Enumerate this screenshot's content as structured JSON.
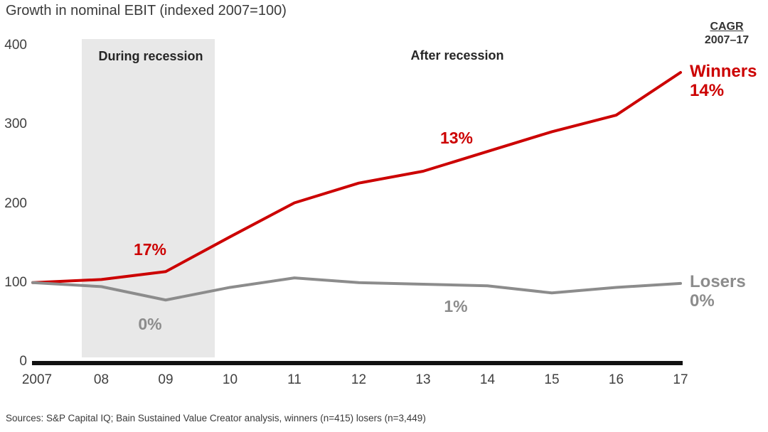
{
  "title": "Growth in nominal EBIT (indexed 2007=100)",
  "cagr_header": {
    "line1": "CAGR",
    "line2": "2007–17"
  },
  "annotations": {
    "during_recession": "During recession",
    "after_recession": "After recession",
    "winners_recession_cagr": "17%",
    "losers_recession_cagr": "0%",
    "winners_post_cagr": "13%",
    "losers_post_cagr": "1%",
    "winners_label": "Winners",
    "winners_total_cagr": "14%",
    "losers_label": "Losers",
    "losers_total_cagr": "0%"
  },
  "source": "Sources: S&P Capital IQ; Bain Sustained Value Creator analysis, winners (n=415) losers (n=3,449)",
  "colors": {
    "winners": "#cc0000",
    "losers": "#8c8c8c",
    "axis": "#111111",
    "recession_band": "#e8e8e8",
    "text": "#404040"
  },
  "chart_data": {
    "type": "line",
    "title": "Growth in nominal EBIT (indexed 2007=100)",
    "x": [
      2007,
      2008,
      2009,
      2010,
      2011,
      2012,
      2013,
      2014,
      2015,
      2016,
      2017
    ],
    "x_tick_labels": [
      "2007",
      "08",
      "09",
      "10",
      "11",
      "12",
      "13",
      "14",
      "15",
      "16",
      "17"
    ],
    "y_ticks": [
      400,
      300,
      200,
      100,
      0
    ],
    "ylim": [
      0,
      400
    ],
    "grid": false,
    "legend_position": "right-end-of-line",
    "recession_band_x": [
      2007.7,
      2009.8
    ],
    "series": [
      {
        "name": "Winners",
        "color": "#cc0000",
        "values": [
          100,
          104,
          114,
          158,
          201,
          226,
          241,
          266,
          291,
          312,
          366
        ],
        "cagr_2007_17": "14%"
      },
      {
        "name": "Losers",
        "color": "#8c8c8c",
        "values": [
          100,
          95,
          78,
          94,
          106,
          100,
          98,
          96,
          87,
          94,
          99
        ],
        "cagr_2007_17": "0%"
      }
    ]
  }
}
